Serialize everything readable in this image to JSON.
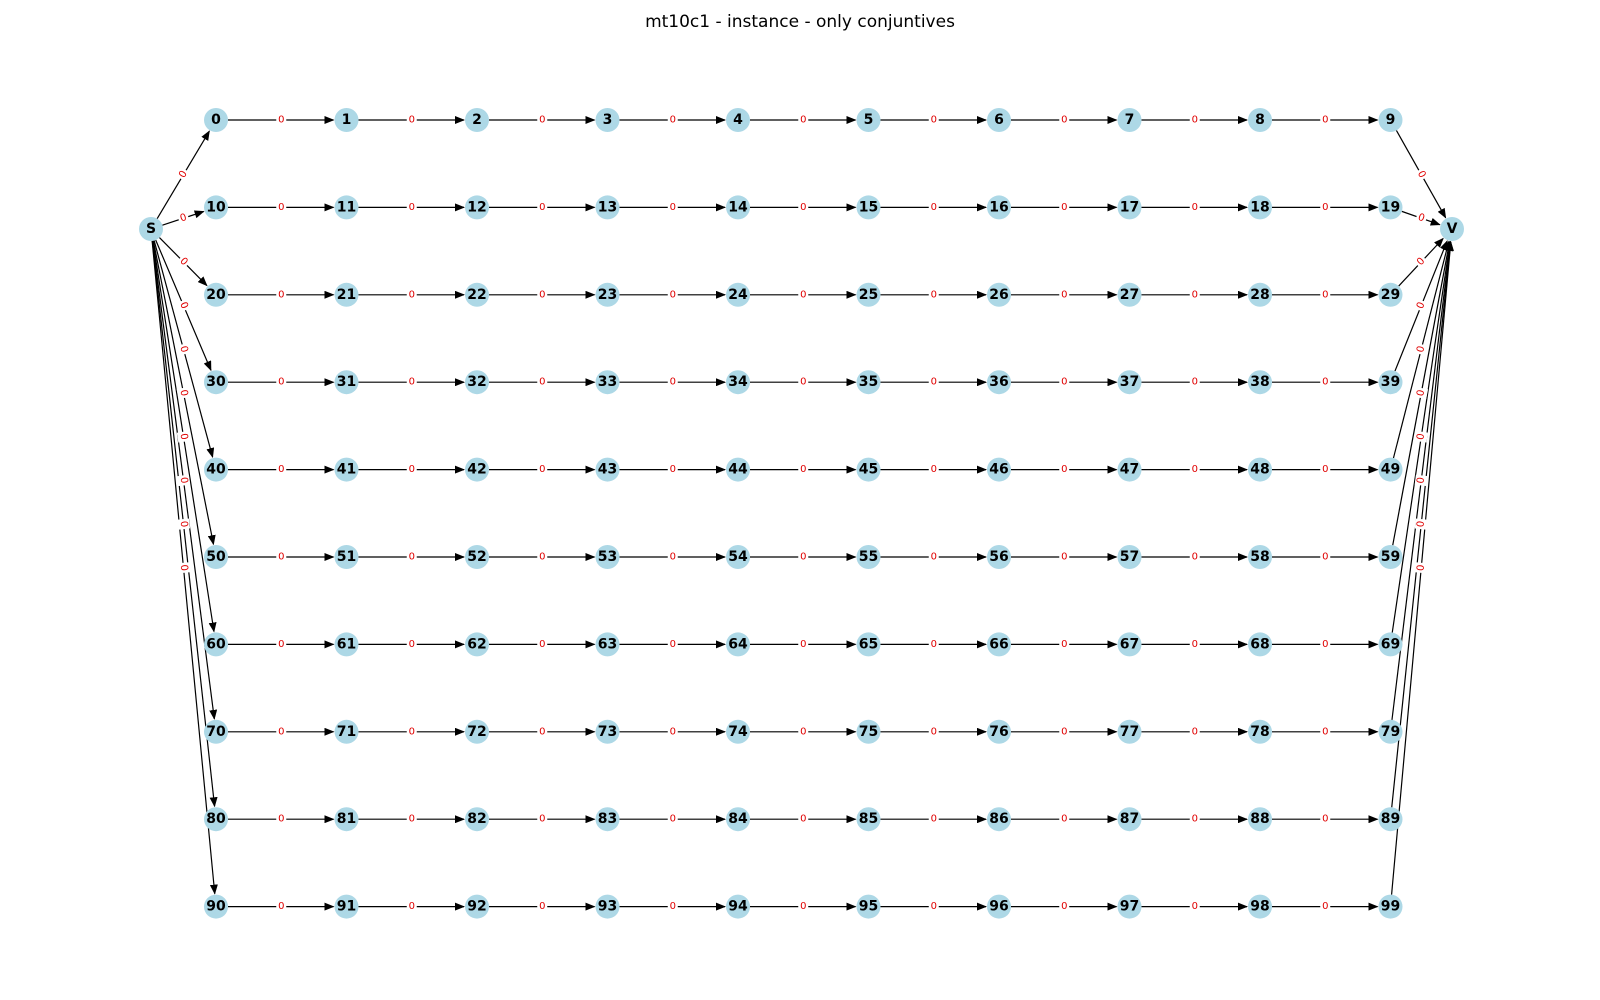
{
  "title": "mt10c1 - instance - only conjuntives",
  "colors": {
    "node_fill": "#add8e6",
    "edge": "#000000",
    "edge_label": "#e00000",
    "label_bg": "#ffffff"
  },
  "source_node": "S",
  "sink_node": "V",
  "machines_per_job": 10,
  "jobs": [
    [
      "0",
      "1",
      "2",
      "3",
      "4",
      "5",
      "6",
      "7",
      "8",
      "9"
    ],
    [
      "10",
      "11",
      "12",
      "13",
      "14",
      "15",
      "16",
      "17",
      "18",
      "19"
    ],
    [
      "20",
      "21",
      "22",
      "23",
      "24",
      "25",
      "26",
      "27",
      "28",
      "29"
    ],
    [
      "30",
      "31",
      "32",
      "33",
      "34",
      "35",
      "36",
      "37",
      "38",
      "39"
    ],
    [
      "40",
      "41",
      "42",
      "43",
      "44",
      "45",
      "46",
      "47",
      "48",
      "49"
    ],
    [
      "50",
      "51",
      "52",
      "53",
      "54",
      "55",
      "56",
      "57",
      "58",
      "59"
    ],
    [
      "60",
      "61",
      "62",
      "63",
      "64",
      "65",
      "66",
      "67",
      "68",
      "69"
    ],
    [
      "70",
      "71",
      "72",
      "73",
      "74",
      "75",
      "76",
      "77",
      "78",
      "79"
    ],
    [
      "80",
      "81",
      "82",
      "83",
      "84",
      "85",
      "86",
      "87",
      "88",
      "89"
    ],
    [
      "90",
      "91",
      "92",
      "93",
      "94",
      "95",
      "96",
      "97",
      "98",
      "99"
    ]
  ],
  "edge_weight": "0"
}
